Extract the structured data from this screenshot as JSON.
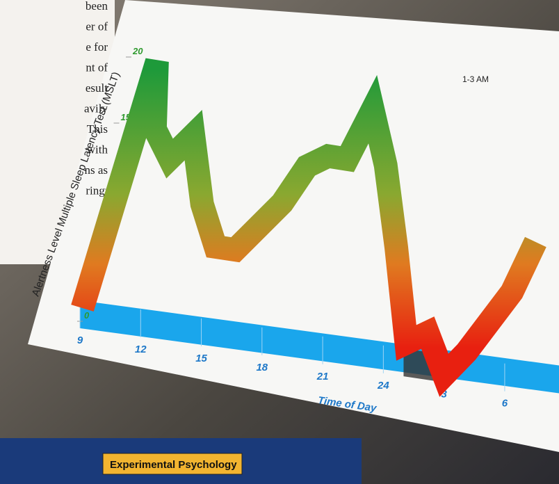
{
  "side_text": {
    "lines": [
      "been",
      "er of",
      "e for",
      "nt of",
      "esult",
      "avily",
      "This",
      "with",
      "ns as",
      "ring."
    ]
  },
  "chart_data": {
    "type": "line",
    "y_label": "Alertness Level Multiple Sleep Latency Test (MSLT)",
    "x_label": "Time of Day",
    "annotation": "1-3 AM",
    "x": [
      9,
      10.5,
      11,
      12,
      13,
      14,
      15,
      16,
      18,
      19,
      20,
      21,
      22,
      23,
      24,
      25,
      26,
      27,
      28,
      30,
      31
    ],
    "values": [
      1,
      20,
      15,
      13,
      15,
      10,
      7,
      7,
      11,
      14,
      15,
      15,
      19,
      15,
      9,
      2,
      3,
      0,
      2,
      7,
      11
    ],
    "xlim": [
      9,
      31
    ],
    "xticks": [
      9,
      12,
      15,
      18,
      21,
      24,
      {
        "value": 27,
        "label": "3"
      },
      {
        "value": 30,
        "label": "6"
      }
    ],
    "ylim": [
      0,
      20
    ],
    "yticks": [
      0,
      5,
      10,
      15,
      20
    ],
    "color": "#2aa040"
  },
  "footer": {
    "label": "Experimental Psychology"
  }
}
